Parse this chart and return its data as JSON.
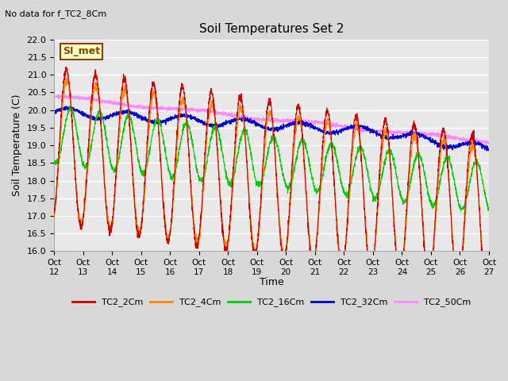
{
  "title": "Soil Temperatures Set 2",
  "subtitle": "No data for f_TC2_8Cm",
  "ylabel": "Soil Temperature (C)",
  "xlabel": "Time",
  "ylim": [
    16.0,
    22.0
  ],
  "yticks": [
    16.0,
    16.5,
    17.0,
    17.5,
    18.0,
    18.5,
    19.0,
    19.5,
    20.0,
    20.5,
    21.0,
    21.5,
    22.0
  ],
  "xtick_labels": [
    "Oct 12",
    "Oct 13",
    "Oct 14",
    "Oct 15",
    "Oct 16",
    "Oct 17",
    "Oct 18",
    "Oct 19",
    "Oct 20",
    "Oct 21",
    "Oct 22",
    "Oct 23",
    "Oct 24",
    "Oct 25",
    "Oct 26",
    "Oct 27"
  ],
  "series_colors": {
    "TC2_2Cm": "#cc0000",
    "TC2_4Cm": "#ff8800",
    "TC2_16Cm": "#00cc00",
    "TC2_32Cm": "#0000cc",
    "TC2_50Cm": "#ff88ff"
  },
  "legend_labels": [
    "TC2_2Cm",
    "TC2_4Cm",
    "TC2_16Cm",
    "TC2_32Cm",
    "TC2_50Cm"
  ],
  "annotation_text": "SI_met",
  "annotation_color": "#884400",
  "annotation_bg": "#ffffcc",
  "fig_facecolor": "#d8d8d8",
  "plot_facecolor": "#e8e8e8",
  "grid_color": "#ffffff",
  "n_points": 3000
}
